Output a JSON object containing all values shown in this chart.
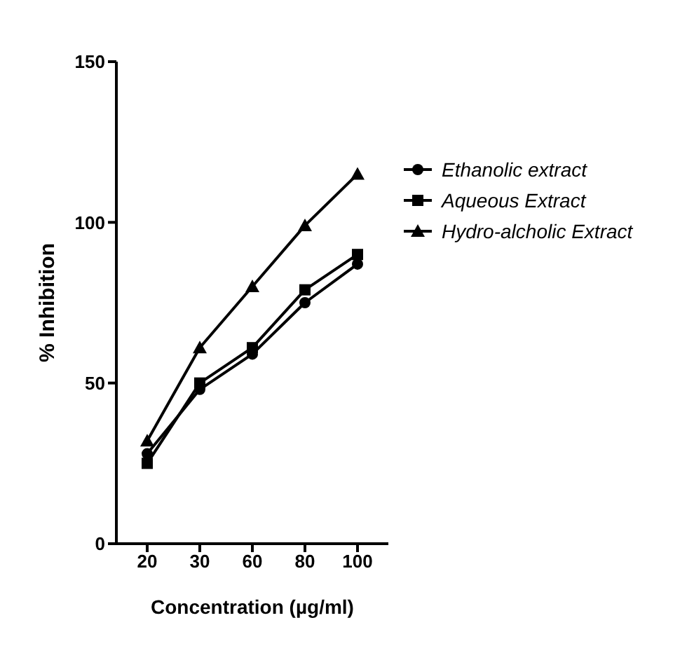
{
  "chart_data": {
    "type": "line",
    "xlabel": "Concentration (µg/ml)",
    "ylabel": "% Inhibition",
    "categories": [
      "20",
      "30",
      "60",
      "80",
      "100"
    ],
    "series": [
      {
        "name": "Ethanolic extract",
        "color": "#000000",
        "marker": "circle",
        "values": [
          28,
          48,
          59,
          75,
          87
        ]
      },
      {
        "name": "Aqueous Extract",
        "color": "#000000",
        "marker": "square",
        "values": [
          25,
          50,
          61,
          79,
          90
        ]
      },
      {
        "name": "Hydro-alcholic Extract",
        "color": "#000000",
        "marker": "triangle",
        "values": [
          32,
          61,
          80,
          99,
          115
        ]
      }
    ],
    "ylim": [
      0,
      150
    ],
    "yticks": [
      0,
      50,
      100,
      150
    ],
    "grid": false,
    "legend": "right",
    "line_style": "solid"
  }
}
